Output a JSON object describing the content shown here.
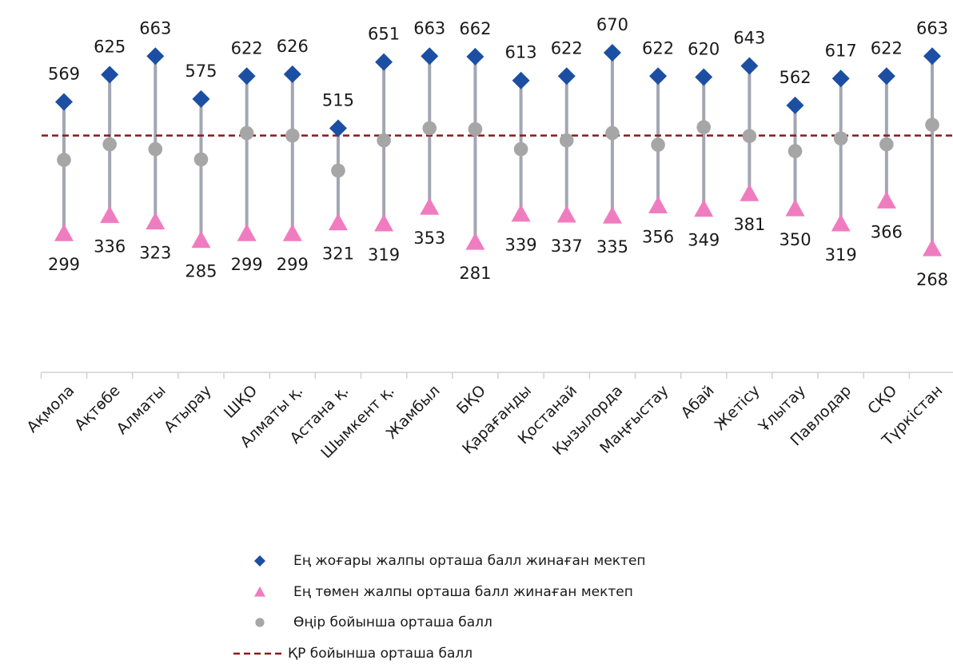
{
  "chart_data": {
    "type": "dot-range",
    "categories": [
      "Ақмола",
      "Ақтөбе",
      "Алматы",
      "Атырау",
      "ШҚО",
      "Алматы қ.",
      "Астана қ.",
      "Шымкент қ.",
      "Жамбыл",
      "БҚО",
      "Қарағанды",
      "Қостанай",
      "Қызылорда",
      "Маңғыстау",
      "Абай",
      "Жетісу",
      "Ұлытау",
      "Павлодар",
      "СҚО",
      "Түркістан"
    ],
    "series": [
      {
        "name": "Ең жоғары жалпы орташа балл жинаған мектеп",
        "color": "#1c4fa3",
        "marker": "diamond",
        "show_labels": true,
        "values": [
          569,
          625,
          663,
          575,
          622,
          626,
          515,
          651,
          663,
          662,
          613,
          622,
          670,
          622,
          620,
          643,
          562,
          617,
          622,
          663
        ]
      },
      {
        "name": "Ең төмен жалпы орташа балл жинаған мектеп",
        "color": "#f07cc0",
        "marker": "triangle",
        "show_labels": true,
        "values": [
          299,
          336,
          323,
          285,
          299,
          299,
          321,
          319,
          353,
          281,
          339,
          337,
          335,
          356,
          349,
          381,
          350,
          319,
          366,
          268
        ]
      },
      {
        "name": "Өңір бойынша орташа балл",
        "color": "#a6a6a6",
        "marker": "circle",
        "show_labels": false,
        "values": [
          450,
          482,
          472,
          451,
          505,
          500,
          428,
          490,
          515,
          513,
          472,
          490,
          505,
          481,
          517,
          499,
          468,
          494,
          482,
          522
        ]
      }
    ],
    "reference_line": {
      "name": "ҚР бойынша орташа балл",
      "color": "#8b1a1a",
      "value": 500
    }
  }
}
